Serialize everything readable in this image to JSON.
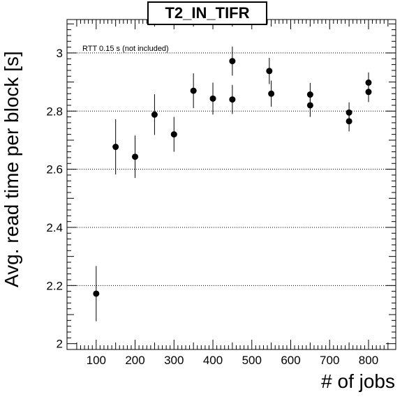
{
  "chart_data": {
    "type": "scatter",
    "title": "T2_IN_TIFR",
    "xlabel": "# of jobs",
    "ylabel": "Avg. read time per block [s]",
    "annotation": "RTT 0.15 s (not included)",
    "xlim": [
      25,
      870
    ],
    "ylim": [
      1.98,
      3.115
    ],
    "x_ticks": [
      100,
      200,
      300,
      400,
      500,
      600,
      700,
      800
    ],
    "y_ticks": [
      2,
      2.2,
      2.4,
      2.6,
      2.8,
      3
    ],
    "y_tick_labels": [
      "2",
      "2.2",
      "2.4",
      "2.6",
      "2.8",
      "3"
    ],
    "grid": "horizontal dotted",
    "points": [
      {
        "x": 100,
        "y": 2.172,
        "err": 0.095
      },
      {
        "x": 150,
        "y": 2.677,
        "err": 0.095
      },
      {
        "x": 200,
        "y": 2.643,
        "err": 0.073
      },
      {
        "x": 250,
        "y": 2.788,
        "err": 0.07
      },
      {
        "x": 300,
        "y": 2.72,
        "err": 0.06
      },
      {
        "x": 350,
        "y": 2.87,
        "err": 0.06
      },
      {
        "x": 400,
        "y": 2.843,
        "err": 0.055
      },
      {
        "x": 450,
        "y": 2.972,
        "err": 0.05
      },
      {
        "x": 450,
        "y": 2.84,
        "err": 0.05
      },
      {
        "x": 545,
        "y": 2.938,
        "err": 0.045
      },
      {
        "x": 550,
        "y": 2.86,
        "err": 0.045
      },
      {
        "x": 650,
        "y": 2.857,
        "err": 0.04
      },
      {
        "x": 650,
        "y": 2.82,
        "err": 0.04
      },
      {
        "x": 750,
        "y": 2.795,
        "err": 0.035
      },
      {
        "x": 750,
        "y": 2.765,
        "err": 0.035
      },
      {
        "x": 800,
        "y": 2.898,
        "err": 0.035
      },
      {
        "x": 800,
        "y": 2.866,
        "err": 0.035
      }
    ]
  }
}
